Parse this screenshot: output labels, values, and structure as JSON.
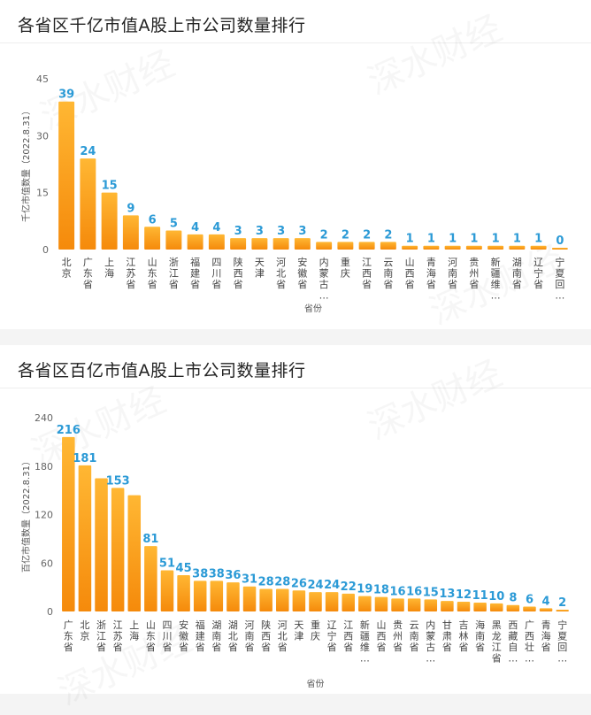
{
  "watermark": "深水财经",
  "chart_data": [
    {
      "type": "bar",
      "title": "各省区千亿市值A股上市公司数量排行",
      "xlabel": "省份",
      "ylabel": "千亿市值数量（2022.8.31）",
      "ylim": [
        0,
        45
      ],
      "yticks": [
        "0",
        "15",
        "30",
        "45"
      ],
      "grid": false,
      "categories": [
        "北京",
        "广东省",
        "上海",
        "江苏省",
        "山东省",
        "浙江省",
        "福建省",
        "四川省",
        "陕西省",
        "天津",
        "河北省",
        "安徽省",
        "内蒙古…",
        "重庆",
        "江西省",
        "云南省",
        "山西省",
        "青海省",
        "河南省",
        "贵州省",
        "新疆维…",
        "湖南省",
        "辽宁省",
        "宁夏回…"
      ],
      "values": [
        39,
        24,
        15,
        9,
        6,
        5,
        4,
        4,
        3,
        3,
        3,
        3,
        2,
        2,
        2,
        2,
        1,
        1,
        1,
        1,
        1,
        1,
        1,
        0
      ],
      "bar_color_top": "#ffb733",
      "bar_color_bottom": "#f58a0b",
      "label_color": "#2b9ad6"
    },
    {
      "type": "bar",
      "title": "各省区百亿市值A股上市公司数量排行",
      "xlabel": "省份",
      "ylabel": "百亿市值数量（2022.8.31）",
      "ylim": [
        0,
        240
      ],
      "yticks": [
        "0",
        "60",
        "120",
        "180",
        "240"
      ],
      "grid": false,
      "categories": [
        "广东省",
        "北京",
        "浙江省",
        "江苏省",
        "上海",
        "山东省",
        "四川省",
        "安徽省",
        "福建省",
        "湖南省",
        "湖北省",
        "河南省",
        "陕西省",
        "河北省",
        "天津",
        "重庆",
        "辽宁省",
        "江西省",
        "新疆维…",
        "山西省",
        "贵州省",
        "云南省",
        "内蒙古…",
        "甘肃省",
        "吉林省",
        "海南省",
        "黑龙江省",
        "西藏自…",
        "广西壮…",
        "青海省",
        "宁夏回…"
      ],
      "values": [
        216,
        181,
        165,
        153,
        144,
        81,
        51,
        45,
        38,
        38,
        36,
        31,
        28,
        28,
        26,
        24,
        24,
        22,
        19,
        18,
        16,
        16,
        15,
        13,
        12,
        11,
        10,
        8,
        6,
        4,
        2
      ],
      "value_labels": [
        "216",
        "181",
        "",
        "153",
        "",
        "81",
        "51",
        "45",
        "38",
        "38",
        "36",
        "31",
        "28",
        "28",
        "26",
        "24",
        "24",
        "22",
        "19",
        "18",
        "16",
        "16",
        "15",
        "13",
        "12",
        "11",
        "10",
        "8",
        "6",
        "4",
        "2"
      ],
      "bar_color_top": "#ffb733",
      "bar_color_bottom": "#f58a0b",
      "label_color": "#2b9ad6"
    }
  ]
}
